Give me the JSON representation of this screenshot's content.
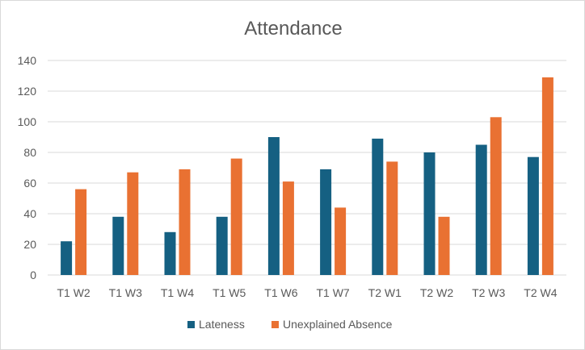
{
  "chart_data": {
    "type": "bar",
    "title": "Attendance",
    "xlabel": "",
    "ylabel": "",
    "ylim": [
      0,
      140
    ],
    "yticks": [
      0,
      20,
      40,
      60,
      80,
      100,
      120,
      140
    ],
    "grid": true,
    "legend_position": "bottom",
    "categories": [
      "T1 W2",
      "T1 W3",
      "T1 W4",
      "T1 W5",
      "T1 W6",
      "T1 W7",
      "T2 W1",
      "T2 W2",
      "T2 W3",
      "T2 W4"
    ],
    "series": [
      {
        "name": "Lateness",
        "color": "#156082",
        "values": [
          22,
          38,
          28,
          38,
          90,
          69,
          89,
          80,
          85,
          77
        ]
      },
      {
        "name": "Unexplained Absence",
        "color": "#E97132",
        "values": [
          56,
          67,
          69,
          76,
          61,
          44,
          74,
          38,
          103,
          129
        ]
      }
    ],
    "gridline_color": "#d9d9d9"
  }
}
